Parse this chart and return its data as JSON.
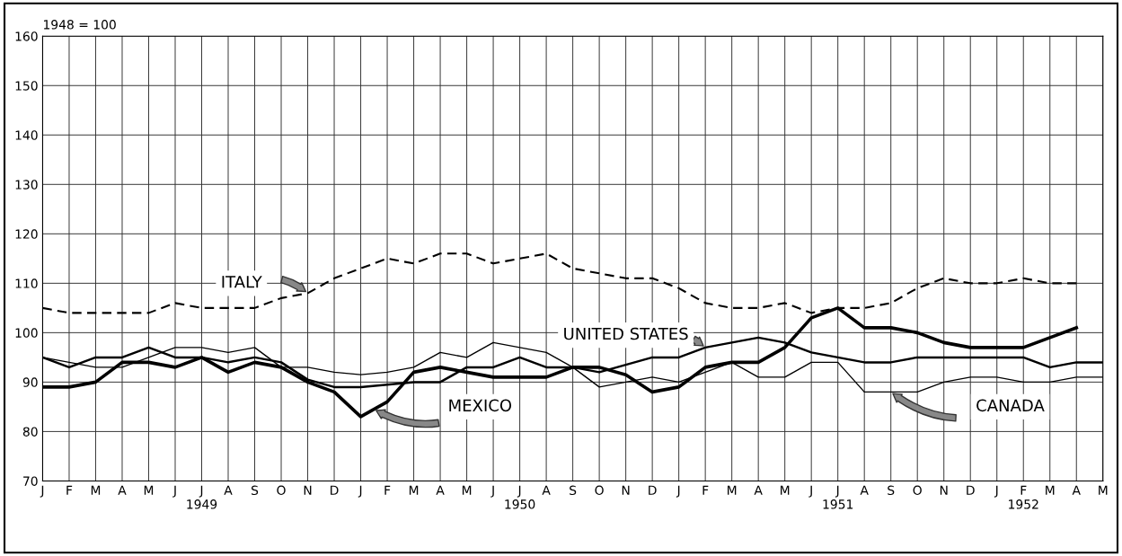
{
  "chart_data": {
    "type": "line",
    "ylabel": "1948 = 100",
    "x": [
      "1949-01",
      "1949-02",
      "1949-03",
      "1949-04",
      "1949-05",
      "1949-06",
      "1949-07",
      "1949-08",
      "1949-09",
      "1949-10",
      "1949-11",
      "1949-12",
      "1950-01",
      "1950-02",
      "1950-03",
      "1950-04",
      "1950-05",
      "1950-06",
      "1950-07",
      "1950-08",
      "1950-09",
      "1950-10",
      "1950-11",
      "1950-12",
      "1951-01",
      "1951-02",
      "1951-03",
      "1951-04",
      "1951-05",
      "1951-06",
      "1951-07",
      "1951-08",
      "1951-09",
      "1951-10",
      "1951-11",
      "1951-12",
      "1952-01",
      "1952-02",
      "1952-03",
      "1952-04",
      "1952-05"
    ],
    "series": [
      {
        "name": "ITALY",
        "color": "#000000",
        "line_style": "dashed",
        "values": [
          105,
          104,
          104,
          104,
          104,
          106,
          105,
          105,
          105,
          107,
          108,
          111,
          113,
          115,
          114,
          116,
          116,
          114,
          115,
          116,
          113,
          112,
          111,
          111,
          109,
          106,
          105,
          105,
          106,
          104,
          105,
          105,
          106,
          109,
          111,
          110,
          110,
          111,
          110,
          110,
          null
        ]
      },
      {
        "name": "UNITED STATES",
        "color": "#000000",
        "line_style": "solid",
        "values": [
          95,
          93,
          95,
          95,
          97,
          95,
          95,
          94,
          95,
          94,
          90.5,
          89,
          89,
          89.5,
          90,
          90,
          93,
          93,
          95,
          93,
          93,
          92,
          93.5,
          95,
          95,
          97,
          98,
          99,
          98,
          96,
          95,
          94,
          94,
          95,
          95,
          95,
          95,
          95,
          93,
          94,
          94
        ]
      },
      {
        "name": "MEXICO",
        "color": "#000000",
        "line_style": "solid",
        "values": [
          89,
          89,
          90,
          94,
          94,
          93,
          95,
          92,
          94,
          93,
          90,
          88,
          83,
          86,
          92,
          93,
          92,
          91,
          91,
          91,
          93,
          93,
          91.5,
          88,
          89,
          93,
          94,
          94,
          97,
          103,
          105,
          101,
          101,
          100,
          98,
          97,
          97,
          97,
          99,
          101,
          null
        ]
      },
      {
        "name": "CANADA",
        "color": "#000000",
        "line_style": "solid",
        "values": [
          95,
          94,
          93,
          93,
          95,
          97,
          97,
          96,
          97,
          93,
          93,
          92,
          91.5,
          92,
          93,
          96,
          95,
          98,
          97,
          96,
          93,
          89,
          90,
          91,
          90,
          92,
          94,
          91,
          91,
          94,
          94,
          88,
          88,
          88,
          90,
          91,
          91,
          90,
          90,
          91,
          91
        ]
      }
    ],
    "xlim": [
      "1949-01",
      "1952-05"
    ],
    "xticks": [
      {
        "value": "1949-01",
        "label": "J"
      },
      {
        "value": "1949-02",
        "label": "F"
      },
      {
        "value": "1949-03",
        "label": "M"
      },
      {
        "value": "1949-04",
        "label": "A"
      },
      {
        "value": "1949-05",
        "label": "M"
      },
      {
        "value": "1949-06",
        "label": "J"
      },
      {
        "value": "1949-07",
        "label": "J\n1949"
      },
      {
        "value": "1949-08",
        "label": "A"
      },
      {
        "value": "1949-09",
        "label": "S"
      },
      {
        "value": "1949-10",
        "label": "O"
      },
      {
        "value": "1949-11",
        "label": "N"
      },
      {
        "value": "1949-12",
        "label": "D"
      },
      {
        "value": "1950-01",
        "label": "J"
      },
      {
        "value": "1950-02",
        "label": "F"
      },
      {
        "value": "1950-03",
        "label": "M"
      },
      {
        "value": "1950-04",
        "label": "A"
      },
      {
        "value": "1950-05",
        "label": "M"
      },
      {
        "value": "1950-06",
        "label": "J"
      },
      {
        "value": "1950-07",
        "label": "J\n1950"
      },
      {
        "value": "1950-08",
        "label": "A"
      },
      {
        "value": "1950-09",
        "label": "S"
      },
      {
        "value": "1950-10",
        "label": "O"
      },
      {
        "value": "1950-11",
        "label": "N"
      },
      {
        "value": "1950-12",
        "label": "D"
      },
      {
        "value": "1951-01",
        "label": "J"
      },
      {
        "value": "1951-02",
        "label": "F"
      },
      {
        "value": "1951-03",
        "label": "M"
      },
      {
        "value": "1951-04",
        "label": "A"
      },
      {
        "value": "1951-05",
        "label": "M"
      },
      {
        "value": "1951-06",
        "label": "J"
      },
      {
        "value": "1951-07",
        "label": "J\n1951"
      },
      {
        "value": "1951-08",
        "label": "A"
      },
      {
        "value": "1951-09",
        "label": "S"
      },
      {
        "value": "1951-10",
        "label": "O"
      },
      {
        "value": "1951-11",
        "label": "N"
      },
      {
        "value": "1951-12",
        "label": "D"
      },
      {
        "value": "1952-01",
        "label": "J"
      },
      {
        "value": "1952-02",
        "label": "F\n1952"
      },
      {
        "value": "1952-03",
        "label": "M"
      },
      {
        "value": "1952-04",
        "label": "A"
      },
      {
        "value": "1952-05",
        "label": "M"
      }
    ],
    "ylim": [
      70,
      160
    ],
    "yticks": [
      70,
      80,
      90,
      100,
      110,
      120,
      130,
      140,
      150,
      160
    ],
    "grid": true,
    "legend": false,
    "marker": "none"
  }
}
